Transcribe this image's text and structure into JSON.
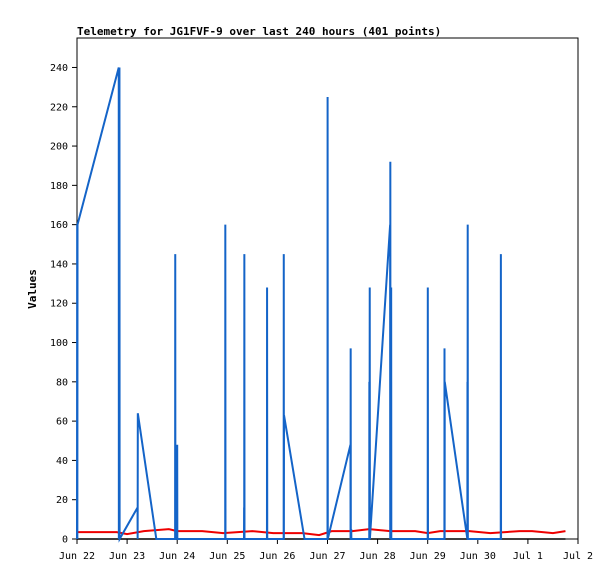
{
  "chart_data": {
    "type": "line",
    "title": "Telemetry for JG1FVF-9 over last 240 hours (401 points)",
    "xlabel": "",
    "ylabel": "Values",
    "xlim": [
      "2024-06-22",
      "2024-07-02"
    ],
    "ylim": [
      0,
      255
    ],
    "x_ticks": [
      {
        "at": "2024-06-22",
        "label": "Jun 22"
      },
      {
        "at": "2024-06-23",
        "label": "Jun 23"
      },
      {
        "at": "2024-06-24",
        "label": "Jun 24"
      },
      {
        "at": "2024-06-25",
        "label": "Jun 25"
      },
      {
        "at": "2024-06-26",
        "label": "Jun 26"
      },
      {
        "at": "2024-06-27",
        "label": "Jun 27"
      },
      {
        "at": "2024-06-28",
        "label": "Jun 28"
      },
      {
        "at": "2024-06-29",
        "label": "Jun 29"
      },
      {
        "at": "2024-06-30",
        "label": "Jun 30"
      },
      {
        "at": "2024-07-01",
        "label": "Jul 1"
      },
      {
        "at": "2024-07-02",
        "label": "Jul 2"
      }
    ],
    "y_ticks": [
      0,
      20,
      40,
      60,
      80,
      100,
      120,
      140,
      160,
      180,
      200,
      220,
      240
    ],
    "grid": false,
    "colors": {
      "series_blue": "#1464c8",
      "series_red": "#ee0000",
      "series_black": "#000000",
      "frame": "#000000"
    },
    "series": [
      {
        "color": "#1464c8",
        "x": [
          "2024-06-22 00:00",
          "2024-06-22 00:05",
          "2024-06-22 00:10",
          "2024-06-22 00:15",
          "2024-06-22 20:00",
          "2024-06-22 20:03",
          "2024-06-22 20:06",
          "2024-06-22 20:12",
          "2024-06-22 20:16",
          "2024-06-22 20:20",
          "2024-06-22 20:25",
          "2024-06-23 05:00",
          "2024-06-23 05:03",
          "2024-06-23 05:08",
          "2024-06-23 14:00",
          "2024-06-23 23:00",
          "2024-06-23 23:04",
          "2024-06-23 23:08",
          "2024-06-24 00:00",
          "2024-06-24 00:04",
          "2024-06-24 00:08",
          "2024-06-24 23:00",
          "2024-06-24 23:03",
          "2024-06-24 23:08",
          "2024-06-25 08:00",
          "2024-06-25 08:03",
          "2024-06-25 08:06",
          "2024-06-25 08:10",
          "2024-06-25 08:14",
          "2024-06-25 19:00",
          "2024-06-25 19:03",
          "2024-06-25 19:08",
          "2024-06-26 03:00",
          "2024-06-26 03:03",
          "2024-06-26 03:06",
          "2024-06-26 03:10",
          "2024-06-26 13:00",
          "2024-06-26 13:30",
          "2024-06-27 00:00",
          "2024-06-27 00:03",
          "2024-06-27 00:08",
          "2024-06-27 11:00",
          "2024-06-27 11:03",
          "2024-06-27 11:06",
          "2024-06-27 11:10",
          "2024-06-27 11:14",
          "2024-06-27 11:18",
          "2024-06-27 11:22",
          "2024-06-27 11:26",
          "2024-06-27 20:00",
          "2024-06-27 20:03",
          "2024-06-27 20:06",
          "2024-06-27 20:10",
          "2024-06-27 20:14",
          "2024-06-27 20:18",
          "2024-06-28 06:00",
          "2024-06-28 06:03",
          "2024-06-28 06:06",
          "2024-06-28 06:10",
          "2024-06-28 06:14",
          "2024-06-28 06:18",
          "2024-06-28 06:22",
          "2024-06-28 06:26",
          "2024-06-28 06:30",
          "2024-06-28 06:34",
          "2024-06-28 09:00",
          "2024-06-28 09:04",
          "2024-06-28 09:08",
          "2024-06-28 09:12",
          "2024-06-28 09:16",
          "2024-06-28 09:20",
          "2024-06-28 09:24",
          "2024-06-28 09:28",
          "2024-06-29 00:00",
          "2024-06-29 00:03",
          "2024-06-29 00:08",
          "2024-06-29 08:00",
          "2024-06-29 08:03",
          "2024-06-29 08:06",
          "2024-06-29 08:10",
          "2024-06-29 19:00",
          "2024-06-29 19:03",
          "2024-06-29 19:06",
          "2024-06-29 19:10",
          "2024-06-29 19:14",
          "2024-06-29 19:18",
          "2024-06-30 00:00",
          "2024-06-30 00:03",
          "2024-06-30 00:06",
          "2024-06-30 00:10",
          "2024-06-30 00:14",
          "2024-06-30 11:00",
          "2024-06-30 11:03",
          "2024-06-30 11:08"
        ],
        "y": [
          0,
          160,
          0,
          160,
          240,
          0,
          128,
          112,
          0,
          240,
          0,
          16,
          0,
          64,
          0,
          0,
          145,
          0,
          48,
          0,
          0,
          0,
          160,
          0,
          0,
          16,
          0,
          145,
          0,
          0,
          128,
          0,
          0,
          145,
          0,
          63,
          0,
          0,
          0,
          225,
          0,
          48,
          0,
          97,
          0,
          0,
          0,
          5,
          0,
          0,
          80,
          0,
          48,
          128,
          0,
          160,
          0,
          192,
          0,
          128,
          0,
          97,
          0,
          128,
          0,
          0,
          0,
          0,
          0,
          0,
          0,
          0,
          0,
          0,
          128,
          0,
          0,
          97,
          0,
          80,
          0,
          80,
          0,
          160,
          0,
          0,
          0,
          0,
          0,
          0,
          0,
          0,
          145,
          0
        ]
      },
      {
        "color": "#ee0000",
        "x": [
          "2024-06-22 00:00",
          "2024-06-22 19:00",
          "2024-06-23 00:00",
          "2024-06-23 08:00",
          "2024-06-23 20:00",
          "2024-06-24 00:00",
          "2024-06-24 12:00",
          "2024-06-24 22:00",
          "2024-06-25 12:00",
          "2024-06-25 22:00",
          "2024-06-26 12:00",
          "2024-06-26 20:00",
          "2024-06-27 02:00",
          "2024-06-27 12:00",
          "2024-06-27 20:00",
          "2024-06-28 06:00",
          "2024-06-28 18:00",
          "2024-06-29 00:00",
          "2024-06-29 06:00",
          "2024-06-29 20:00",
          "2024-06-30 06:00",
          "2024-06-30 20:00",
          "2024-07-01 02:00",
          "2024-07-01 12:00",
          "2024-07-01 18:00"
        ],
        "y": [
          3.5,
          3.5,
          2.5,
          4,
          5,
          4,
          4,
          3,
          4,
          3,
          3,
          2,
          4,
          4,
          5,
          4,
          4,
          3,
          4,
          4,
          3,
          4,
          4,
          3,
          4
        ]
      },
      {
        "color": "#000000",
        "x": [
          "2024-06-22 00:00",
          "2024-07-01 18:00"
        ],
        "y": [
          0,
          0
        ]
      }
    ]
  }
}
